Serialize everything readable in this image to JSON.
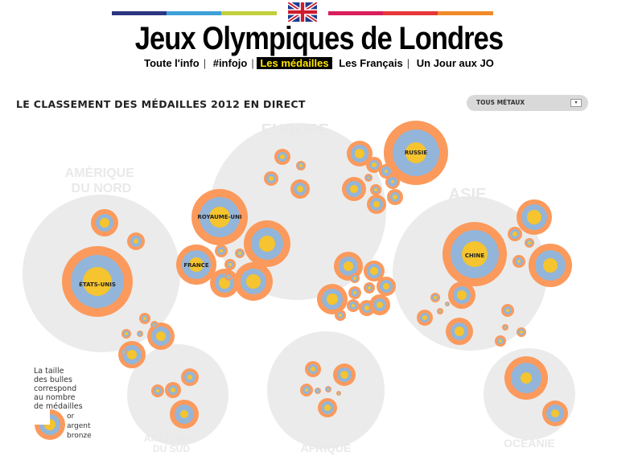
{
  "site_title": "Jeux Olympiques de Londres",
  "nav": [
    {
      "label": "Toute l'info",
      "active": false
    },
    {
      "label": "#infojo",
      "active": false
    },
    {
      "label": "Les médailles",
      "active": true
    },
    {
      "label": "Les Français",
      "active": false
    },
    {
      "label": "Un Jour aux JO",
      "active": false
    }
  ],
  "section_title": "LE CLASSEMENT DES MÉDAILLES 2012 EN DIRECT",
  "metal_filter": {
    "selected": "TOUS MÉTAUX"
  },
  "colors": {
    "gold": "#f5c42e",
    "silver": "#93b5d9",
    "bronze": "#fb9a5c",
    "continent": "#ebebeb",
    "stripe_navy": "#2d3580",
    "stripe_blue": "#3da0d8",
    "stripe_green": "#c3cf3c",
    "stripe_pink": "#d81e5b",
    "stripe_red": "#e63838",
    "stripe_orange": "#f18b2a"
  },
  "continents": [
    {
      "name": "AMÉRIQUE DU NORD",
      "lines": [
        "AMÉRIQUE",
        "DU NORD"
      ]
    },
    {
      "name": "EUROPE",
      "lines": [
        "EUROPE"
      ]
    },
    {
      "name": "ASIE",
      "lines": [
        "ASIE"
      ]
    },
    {
      "name": "AMÉRIQUE DU SUD",
      "lines": [
        "AMÉRIQUE",
        "DU SUD"
      ]
    },
    {
      "name": "AFRIQUE",
      "lines": [
        "AFRIQUE"
      ]
    },
    {
      "name": "OCÉANIE",
      "lines": [
        "OCÉANIE"
      ]
    }
  ],
  "countries": [
    {
      "name": "ÉTATS-UNIS",
      "gold": 46,
      "silver": 29,
      "bronze": 29
    },
    {
      "name": "CHINE",
      "gold": 38,
      "silver": 27,
      "bronze": 23
    },
    {
      "name": "ROYAUME-UNI",
      "gold": 29,
      "silver": 17,
      "bronze": 19
    },
    {
      "name": "RUSSIE",
      "gold": 24,
      "silver": 26,
      "bronze": 32
    },
    {
      "name": "FRANCE",
      "gold": 11,
      "silver": 11,
      "bronze": 12
    }
  ],
  "legend": {
    "text": [
      "La taille",
      "des bulles",
      "correspond",
      "au nombre",
      "de médailles"
    ],
    "metals": [
      "or",
      "argent",
      "bronze"
    ]
  }
}
